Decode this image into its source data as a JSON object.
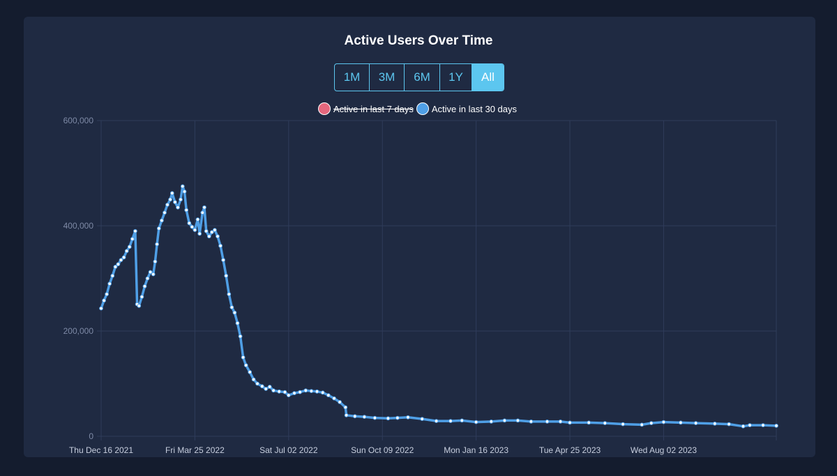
{
  "range_buttons": [
    "1M",
    "3M",
    "6M",
    "1Y",
    "All"
  ],
  "active_range": "All",
  "colors": {
    "background": "#141c2e",
    "card": "#1f2a42",
    "accent": "#5cc6ef",
    "series_7d": "#e4677d",
    "series_30d": "#4f9fe6",
    "points": "#ffffff",
    "grid": "#2f3c5a"
  },
  "chart_data": {
    "type": "line",
    "title": "Active Users Over Time",
    "xlabel": "",
    "ylabel": "",
    "ylim": [
      0,
      600000
    ],
    "yticks": [
      0,
      200000,
      400000,
      600000
    ],
    "ytick_labels": [
      "0",
      "200,000",
      "400,000",
      "600,000"
    ],
    "xlim": [
      "2021-12-16",
      "2023-11-29"
    ],
    "xticks": [
      "2021-12-16",
      "2022-03-25",
      "2022-07-02",
      "2022-10-09",
      "2023-01-16",
      "2023-04-25",
      "2023-08-02"
    ],
    "xtick_labels": [
      "Thu Dec 16 2021",
      "Fri Mar 25 2022",
      "Sat Jul 02 2022",
      "Sun Oct 09 2022",
      "Mon Jan 16 2023",
      "Tue Apr 25 2023",
      "Wed Aug 02 2023"
    ],
    "grid": true,
    "legend_position": "top",
    "series": [
      {
        "name": "Active in last 7 days",
        "hidden": true,
        "points": []
      },
      {
        "name": "Active in last 30 days",
        "hidden": false,
        "points": [
          [
            "2021-12-16",
            243000
          ],
          [
            "2021-12-19",
            258000
          ],
          [
            "2021-12-22",
            270000
          ],
          [
            "2021-12-25",
            290000
          ],
          [
            "2021-12-28",
            305000
          ],
          [
            "2021-12-31",
            322000
          ],
          [
            "2022-01-03",
            327000
          ],
          [
            "2022-01-06",
            335000
          ],
          [
            "2022-01-09",
            340000
          ],
          [
            "2022-01-12",
            352000
          ],
          [
            "2022-01-15",
            360000
          ],
          [
            "2022-01-18",
            375000
          ],
          [
            "2022-01-21",
            390000
          ],
          [
            "2022-01-23",
            251000
          ],
          [
            "2022-01-25",
            248000
          ],
          [
            "2022-01-28",
            265000
          ],
          [
            "2022-01-31",
            285000
          ],
          [
            "2022-02-03",
            300000
          ],
          [
            "2022-02-06",
            312000
          ],
          [
            "2022-02-09",
            308000
          ],
          [
            "2022-02-11",
            332000
          ],
          [
            "2022-02-13",
            365000
          ],
          [
            "2022-02-15",
            395000
          ],
          [
            "2022-02-18",
            410000
          ],
          [
            "2022-02-21",
            425000
          ],
          [
            "2022-02-24",
            440000
          ],
          [
            "2022-02-27",
            450000
          ],
          [
            "2022-03-01",
            462000
          ],
          [
            "2022-03-04",
            445000
          ],
          [
            "2022-03-07",
            435000
          ],
          [
            "2022-03-10",
            450000
          ],
          [
            "2022-03-12",
            475000
          ],
          [
            "2022-03-14",
            465000
          ],
          [
            "2022-03-16",
            430000
          ],
          [
            "2022-03-19",
            405000
          ],
          [
            "2022-03-22",
            398000
          ],
          [
            "2022-03-25",
            392000
          ],
          [
            "2022-03-28",
            412000
          ],
          [
            "2022-03-30",
            385000
          ],
          [
            "2022-04-02",
            425000
          ],
          [
            "2022-04-04",
            435000
          ],
          [
            "2022-04-06",
            390000
          ],
          [
            "2022-04-09",
            380000
          ],
          [
            "2022-04-12",
            388000
          ],
          [
            "2022-04-15",
            392000
          ],
          [
            "2022-04-18",
            380000
          ],
          [
            "2022-04-21",
            362000
          ],
          [
            "2022-04-24",
            335000
          ],
          [
            "2022-04-27",
            305000
          ],
          [
            "2022-04-30",
            270000
          ],
          [
            "2022-05-03",
            245000
          ],
          [
            "2022-05-06",
            235000
          ],
          [
            "2022-05-09",
            215000
          ],
          [
            "2022-05-12",
            190000
          ],
          [
            "2022-05-15",
            150000
          ],
          [
            "2022-05-18",
            135000
          ],
          [
            "2022-05-22",
            122000
          ],
          [
            "2022-05-26",
            108000
          ],
          [
            "2022-05-30",
            100000
          ],
          [
            "2022-06-04",
            95000
          ],
          [
            "2022-06-08",
            90000
          ],
          [
            "2022-06-12",
            94000
          ],
          [
            "2022-06-16",
            87000
          ],
          [
            "2022-06-22",
            85000
          ],
          [
            "2022-06-28",
            84000
          ],
          [
            "2022-07-02",
            78000
          ],
          [
            "2022-07-08",
            82000
          ],
          [
            "2022-07-14",
            84000
          ],
          [
            "2022-07-20",
            87000
          ],
          [
            "2022-07-26",
            86000
          ],
          [
            "2022-08-01",
            85000
          ],
          [
            "2022-08-07",
            83000
          ],
          [
            "2022-08-13",
            78000
          ],
          [
            "2022-08-19",
            72000
          ],
          [
            "2022-08-25",
            65000
          ],
          [
            "2022-08-31",
            55000
          ],
          [
            "2022-09-01",
            40000
          ],
          [
            "2022-09-10",
            38000
          ],
          [
            "2022-09-20",
            37000
          ],
          [
            "2022-10-01",
            35000
          ],
          [
            "2022-10-15",
            34000
          ],
          [
            "2022-10-25",
            35000
          ],
          [
            "2022-11-05",
            36000
          ],
          [
            "2022-11-20",
            33000
          ],
          [
            "2022-12-05",
            29000
          ],
          [
            "2022-12-20",
            29000
          ],
          [
            "2023-01-01",
            30000
          ],
          [
            "2023-01-16",
            27000
          ],
          [
            "2023-02-01",
            28000
          ],
          [
            "2023-02-15",
            30000
          ],
          [
            "2023-03-01",
            30000
          ],
          [
            "2023-03-15",
            28000
          ],
          [
            "2023-04-01",
            28000
          ],
          [
            "2023-04-15",
            28000
          ],
          [
            "2023-04-25",
            26000
          ],
          [
            "2023-05-15",
            26000
          ],
          [
            "2023-06-01",
            25000
          ],
          [
            "2023-06-20",
            23000
          ],
          [
            "2023-07-10",
            22000
          ],
          [
            "2023-07-20",
            25000
          ],
          [
            "2023-08-02",
            27000
          ],
          [
            "2023-08-20",
            26000
          ],
          [
            "2023-09-05",
            25000
          ],
          [
            "2023-09-25",
            24000
          ],
          [
            "2023-10-10",
            23000
          ],
          [
            "2023-10-25",
            19000
          ],
          [
            "2023-11-01",
            21000
          ],
          [
            "2023-11-15",
            21000
          ],
          [
            "2023-11-29",
            20000
          ]
        ]
      }
    ]
  }
}
